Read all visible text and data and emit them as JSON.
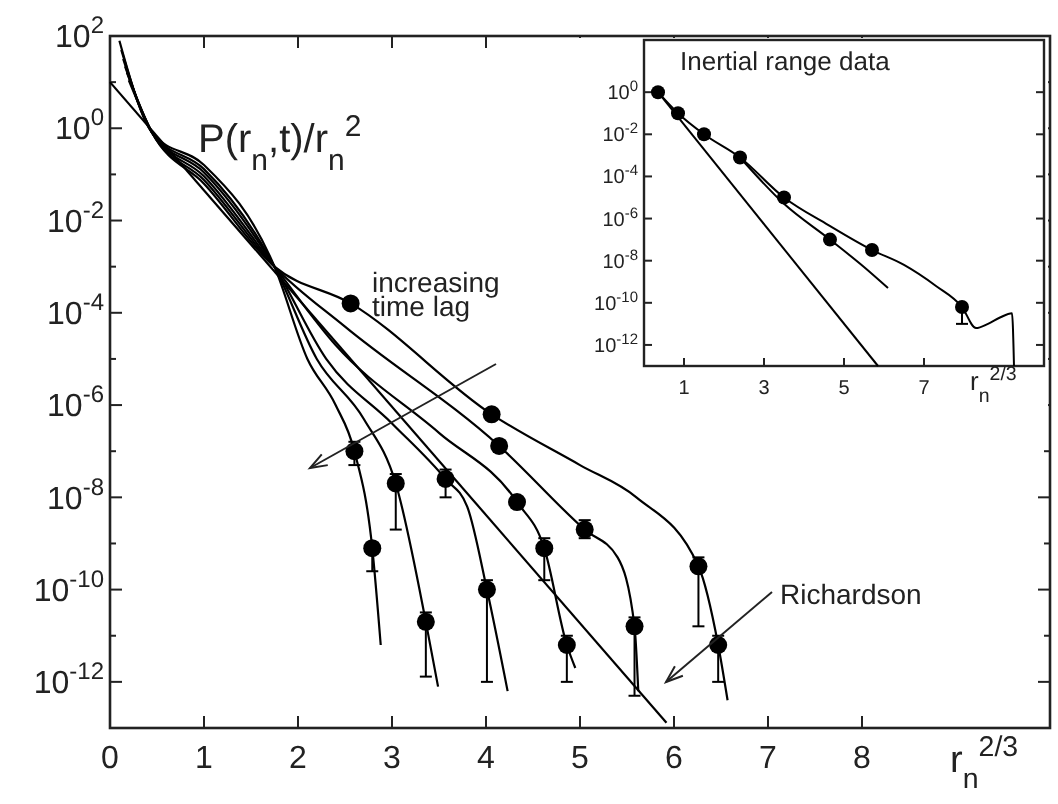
{
  "chart_data": [
    {
      "type": "line",
      "ylabel": "P(r$_{n}$,t)/r$_{n}$$^{2}$",
      "xlabel": "r$_{n}$$^{2/3}$",
      "log": "y",
      "xlim": [
        0,
        10
      ],
      "ylim": [
        1e-13,
        100
      ],
      "xticks": [
        0,
        1,
        2,
        3,
        4,
        5,
        6,
        7,
        8
      ],
      "yticks": [
        {
          "value": 100,
          "label": "10$^{2}$"
        },
        {
          "value": 10,
          "label": null
        },
        {
          "value": 1,
          "label": "10$^{0}$"
        },
        {
          "value": 0.1,
          "label": null
        },
        {
          "value": 0.01,
          "label": "10$^{-2}$"
        },
        {
          "value": 0.001,
          "label": null
        },
        {
          "value": 0.0001,
          "label": "10$^{-4}$"
        },
        {
          "value": 1e-05,
          "label": null
        },
        {
          "value": 1e-06,
          "label": "10$^{-6}$"
        },
        {
          "value": 1e-07,
          "label": null
        },
        {
          "value": 1e-08,
          "label": "10$^{-8}$"
        },
        {
          "value": 1e-09,
          "label": null
        },
        {
          "value": 1e-10,
          "label": "10$^{-10}$"
        },
        {
          "value": 1e-11,
          "label": null
        },
        {
          "value": 1e-12,
          "label": "10$^{-12}$"
        }
      ],
      "annotations": [
        "increasing time lag",
        "Richardson"
      ],
      "series": [
        {
          "type": "line",
          "color": "#000000",
          "x": [
            0,
            5.92
          ],
          "values": [
            10,
            1.3e-13
          ]
        },
        {
          "type": "line",
          "color": "#000000",
          "x": [
            0.1,
            0.45,
            1.0,
            1.75,
            2.1,
            2.4,
            2.6,
            2.79,
            2.88
          ],
          "values": [
            79,
            0.79,
            0.16,
            0.001,
            1e-05,
            1e-06,
            1e-07,
            7.9e-10,
            6.3e-12
          ]
        },
        {
          "type": "line",
          "color": "#000000",
          "x": [
            0.12,
            0.45,
            1.0,
            1.75,
            2.2,
            2.7,
            3.04,
            3.36,
            3.49
          ],
          "values": [
            50,
            0.79,
            0.13,
            0.001,
            1e-05,
            5e-07,
            2e-08,
            2e-11,
            7.9e-13
          ]
        },
        {
          "type": "line",
          "color": "#000000",
          "x": [
            0.14,
            0.45,
            1.0,
            1.75,
            2.3,
            3.0,
            3.57,
            3.8,
            4.01,
            4.23
          ],
          "values": [
            32,
            0.79,
            0.11,
            0.001,
            1e-05,
            4e-07,
            2.5e-08,
            6.3e-09,
            1e-10,
            6.3e-13
          ]
        },
        {
          "type": "line",
          "color": "#000000",
          "x": [
            0.16,
            0.45,
            1.0,
            1.75,
            2.4,
            3.5,
            4.33,
            4.62,
            4.86,
            4.95
          ],
          "values": [
            22,
            0.79,
            0.091,
            0.001,
            2e-05,
            2.5e-07,
            7.9e-09,
            7.9e-10,
            6.3e-12,
            2e-12
          ]
        },
        {
          "type": "line",
          "color": "#000000",
          "x": [
            0.18,
            0.45,
            1.0,
            1.75,
            2.5,
            4.14,
            5.05,
            5.4,
            5.58,
            5.62
          ],
          "values": [
            16,
            0.79,
            0.076,
            0.001,
            5e-05,
            1.3e-07,
            2e-09,
            5e-10,
            1.6e-11,
            6.3e-13
          ]
        },
        {
          "type": "line",
          "color": "#000000",
          "x": [
            0.2,
            0.45,
            1.0,
            1.75,
            2.56,
            4.06,
            5.0,
            5.6,
            6.26,
            6.47,
            6.57
          ],
          "values": [
            11,
            0.79,
            0.063,
            0.001,
            0.00016,
            6.3e-07,
            5e-08,
            1e-08,
            3.2e-10,
            6.3e-12,
            4e-13
          ]
        },
        {
          "type": "scatter",
          "color": "#000000",
          "marker": "circle",
          "x": [
            2.56,
            4.06,
            6.26,
            6.47,
            4.14,
            5.05,
            5.58,
            4.33,
            4.62,
            4.86,
            3.57,
            4.01,
            3.04,
            3.36,
            2.6,
            2.79
          ],
          "values": [
            0.00016,
            6.3e-07,
            3.2e-10,
            6.3e-12,
            1.3e-07,
            2e-09,
            1.6e-11,
            7.9e-09,
            7.9e-10,
            6.3e-12,
            2.5e-08,
            1e-10,
            2e-08,
            2e-11,
            1e-07,
            7.9e-10
          ],
          "errors": [
            null,
            null,
            [
              1.6e-11,
              5e-10
            ],
            [
              1e-12,
              1e-11
            ],
            [
              1e-07,
              1.6e-07
            ],
            [
              1.3e-09,
              3.2e-09
            ],
            [
              5e-13,
              2.5e-11
            ],
            null,
            [
              1.6e-10,
              1.3e-09
            ],
            [
              1e-12,
              1e-11
            ],
            [
              1e-08,
              4e-08
            ],
            [
              1e-12,
              1.6e-10
            ],
            [
              2e-09,
              3.2e-08
            ],
            [
              1.3e-12,
              3.2e-11
            ],
            [
              5e-08,
              1.6e-07
            ],
            [
              2.5e-10,
              7.9e-10
            ]
          ]
        }
      ]
    },
    {
      "type": "line",
      "title": "Inertial range data",
      "xlabel": "r$_{n}$$^{2/3}$",
      "log": "y",
      "xlim": [
        0,
        10
      ],
      "ylim": [
        1e-13,
        300
      ],
      "xticks": [
        1,
        3,
        5,
        7
      ],
      "yticks": [
        {
          "value": 1,
          "label": "10$^{0}$"
        },
        {
          "value": 0.01,
          "label": "10$^{-2}$"
        },
        {
          "value": 0.0001,
          "label": "10$^{-4}$"
        },
        {
          "value": 1e-06,
          "label": "10$^{-6}$"
        },
        {
          "value": 1e-08,
          "label": "10$^{-8}$"
        },
        {
          "value": 1e-10,
          "label": "10$^{-10}$"
        },
        {
          "value": 1e-12,
          "label": "10$^{-12}$"
        }
      ],
      "series": [
        {
          "type": "line",
          "color": "#000000",
          "x": [
            0.35,
            5.85
          ],
          "values": [
            1,
            1e-13
          ]
        },
        {
          "type": "line",
          "color": "#000000",
          "x": [
            0.35,
            0.85,
            1.5,
            2.4,
            3.5,
            4.6,
            5.7,
            6.5,
            7.3,
            7.95,
            8.3,
            8.6,
            8.9,
            9.2,
            9.25
          ],
          "values": [
            1,
            0.1,
            0.01,
            0.00079,
            1e-05,
            5e-07,
            3.2e-08,
            6.3e-09,
            6.3e-10,
            6.3e-11,
            6.3e-12,
            1e-11,
            2e-11,
            3.2e-11,
            1e-13
          ]
        },
        {
          "type": "line",
          "color": "#000000",
          "x": [
            2.4,
            3.5,
            4.65,
            5.5,
            6.1
          ],
          "values": [
            0.00079,
            5e-06,
            1e-07,
            5e-09,
            5e-10
          ]
        },
        {
          "type": "scatter",
          "color": "#000000",
          "marker": "circle",
          "x": [
            0.35,
            0.85,
            1.5,
            2.4,
            3.5,
            4.65,
            5.7,
            7.95
          ],
          "values": [
            1,
            0.1,
            0.01,
            0.00079,
            1e-05,
            1e-07,
            3.2e-08,
            6.3e-11
          ],
          "errors": [
            null,
            null,
            null,
            null,
            null,
            null,
            null,
            [
              1e-11,
              6.3e-11
            ]
          ]
        }
      ]
    }
  ]
}
